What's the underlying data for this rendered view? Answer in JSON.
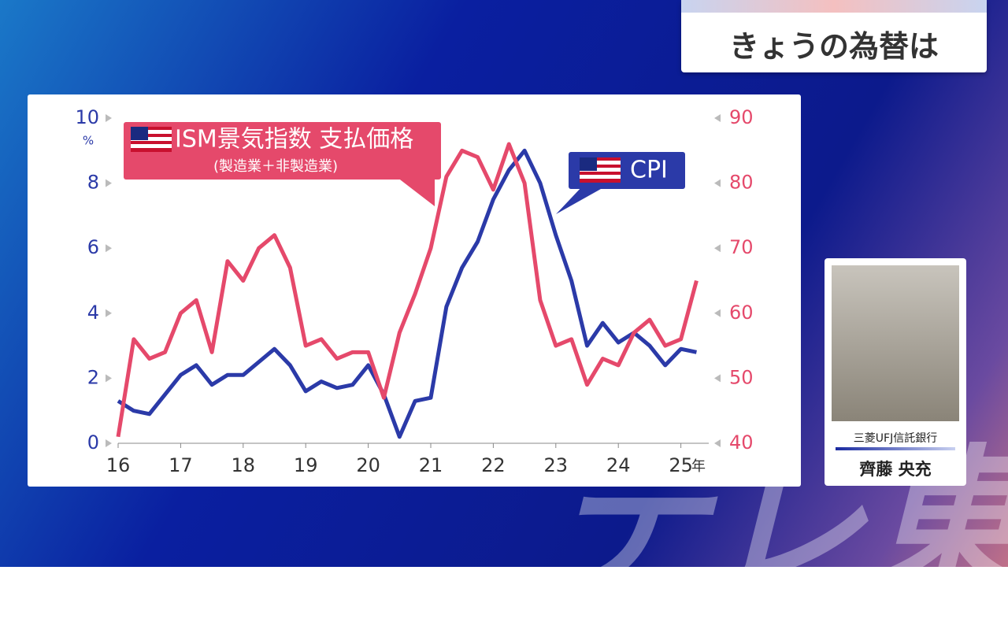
{
  "header": {
    "title": "きょうの為替は"
  },
  "chart_data": {
    "type": "line",
    "legend_labels": {
      "ism_title": "ISM景気指数 支払価格",
      "ism_sub": "(製造業＋非製造業)"
    },
    "y_unit": "%",
    "x_unit": "年",
    "x": [
      16,
      16.25,
      16.5,
      16.75,
      17,
      17.25,
      17.5,
      17.75,
      18,
      18.25,
      18.5,
      18.75,
      19,
      19.25,
      19.5,
      19.75,
      20,
      20.25,
      20.5,
      20.75,
      21,
      21.25,
      21.5,
      21.75,
      22,
      22.25,
      22.5,
      22.75,
      23,
      23.25,
      23.5,
      23.75,
      24,
      24.25,
      24.5,
      24.75,
      25,
      25.25
    ],
    "series": [
      {
        "name": "CPI",
        "color": "#2b3aa8",
        "values": [
          1.3,
          1.0,
          0.9,
          1.5,
          2.1,
          2.4,
          1.8,
          2.1,
          2.1,
          2.5,
          2.9,
          2.4,
          1.6,
          1.9,
          1.7,
          1.8,
          2.4,
          1.5,
          0.2,
          1.3,
          1.4,
          4.2,
          5.4,
          6.2,
          7.5,
          8.4,
          9.0,
          8.0,
          6.4,
          5.0,
          3.0,
          3.7,
          3.1,
          3.4,
          3.0,
          2.4,
          2.9,
          2.8
        ]
      },
      {
        "name": "ISM景気指数 支払価格",
        "color": "#e5496b",
        "axis": "y2",
        "values": [
          41,
          56,
          53,
          54,
          60,
          62,
          54,
          68,
          65,
          70,
          72,
          67,
          55,
          56,
          53,
          54,
          54,
          47,
          57,
          63,
          70,
          81,
          85,
          84,
          79,
          86,
          80,
          62,
          55,
          56,
          49,
          53,
          52,
          57,
          59,
          55,
          56,
          65
        ]
      }
    ],
    "xlim": [
      16,
      25.6
    ],
    "xticks": [
      16,
      17,
      18,
      19,
      20,
      21,
      22,
      23,
      24,
      25
    ],
    "ylim": [
      0,
      10
    ],
    "yticks": [
      0,
      2,
      4,
      6,
      8,
      10
    ],
    "y2lim": [
      40,
      90
    ],
    "y2ticks": [
      40,
      50,
      60,
      70,
      80,
      90
    ]
  },
  "guest": {
    "affiliation": "三菱UFJ信託銀行",
    "name": "齊藤 央充"
  },
  "watermark": "テレ東"
}
